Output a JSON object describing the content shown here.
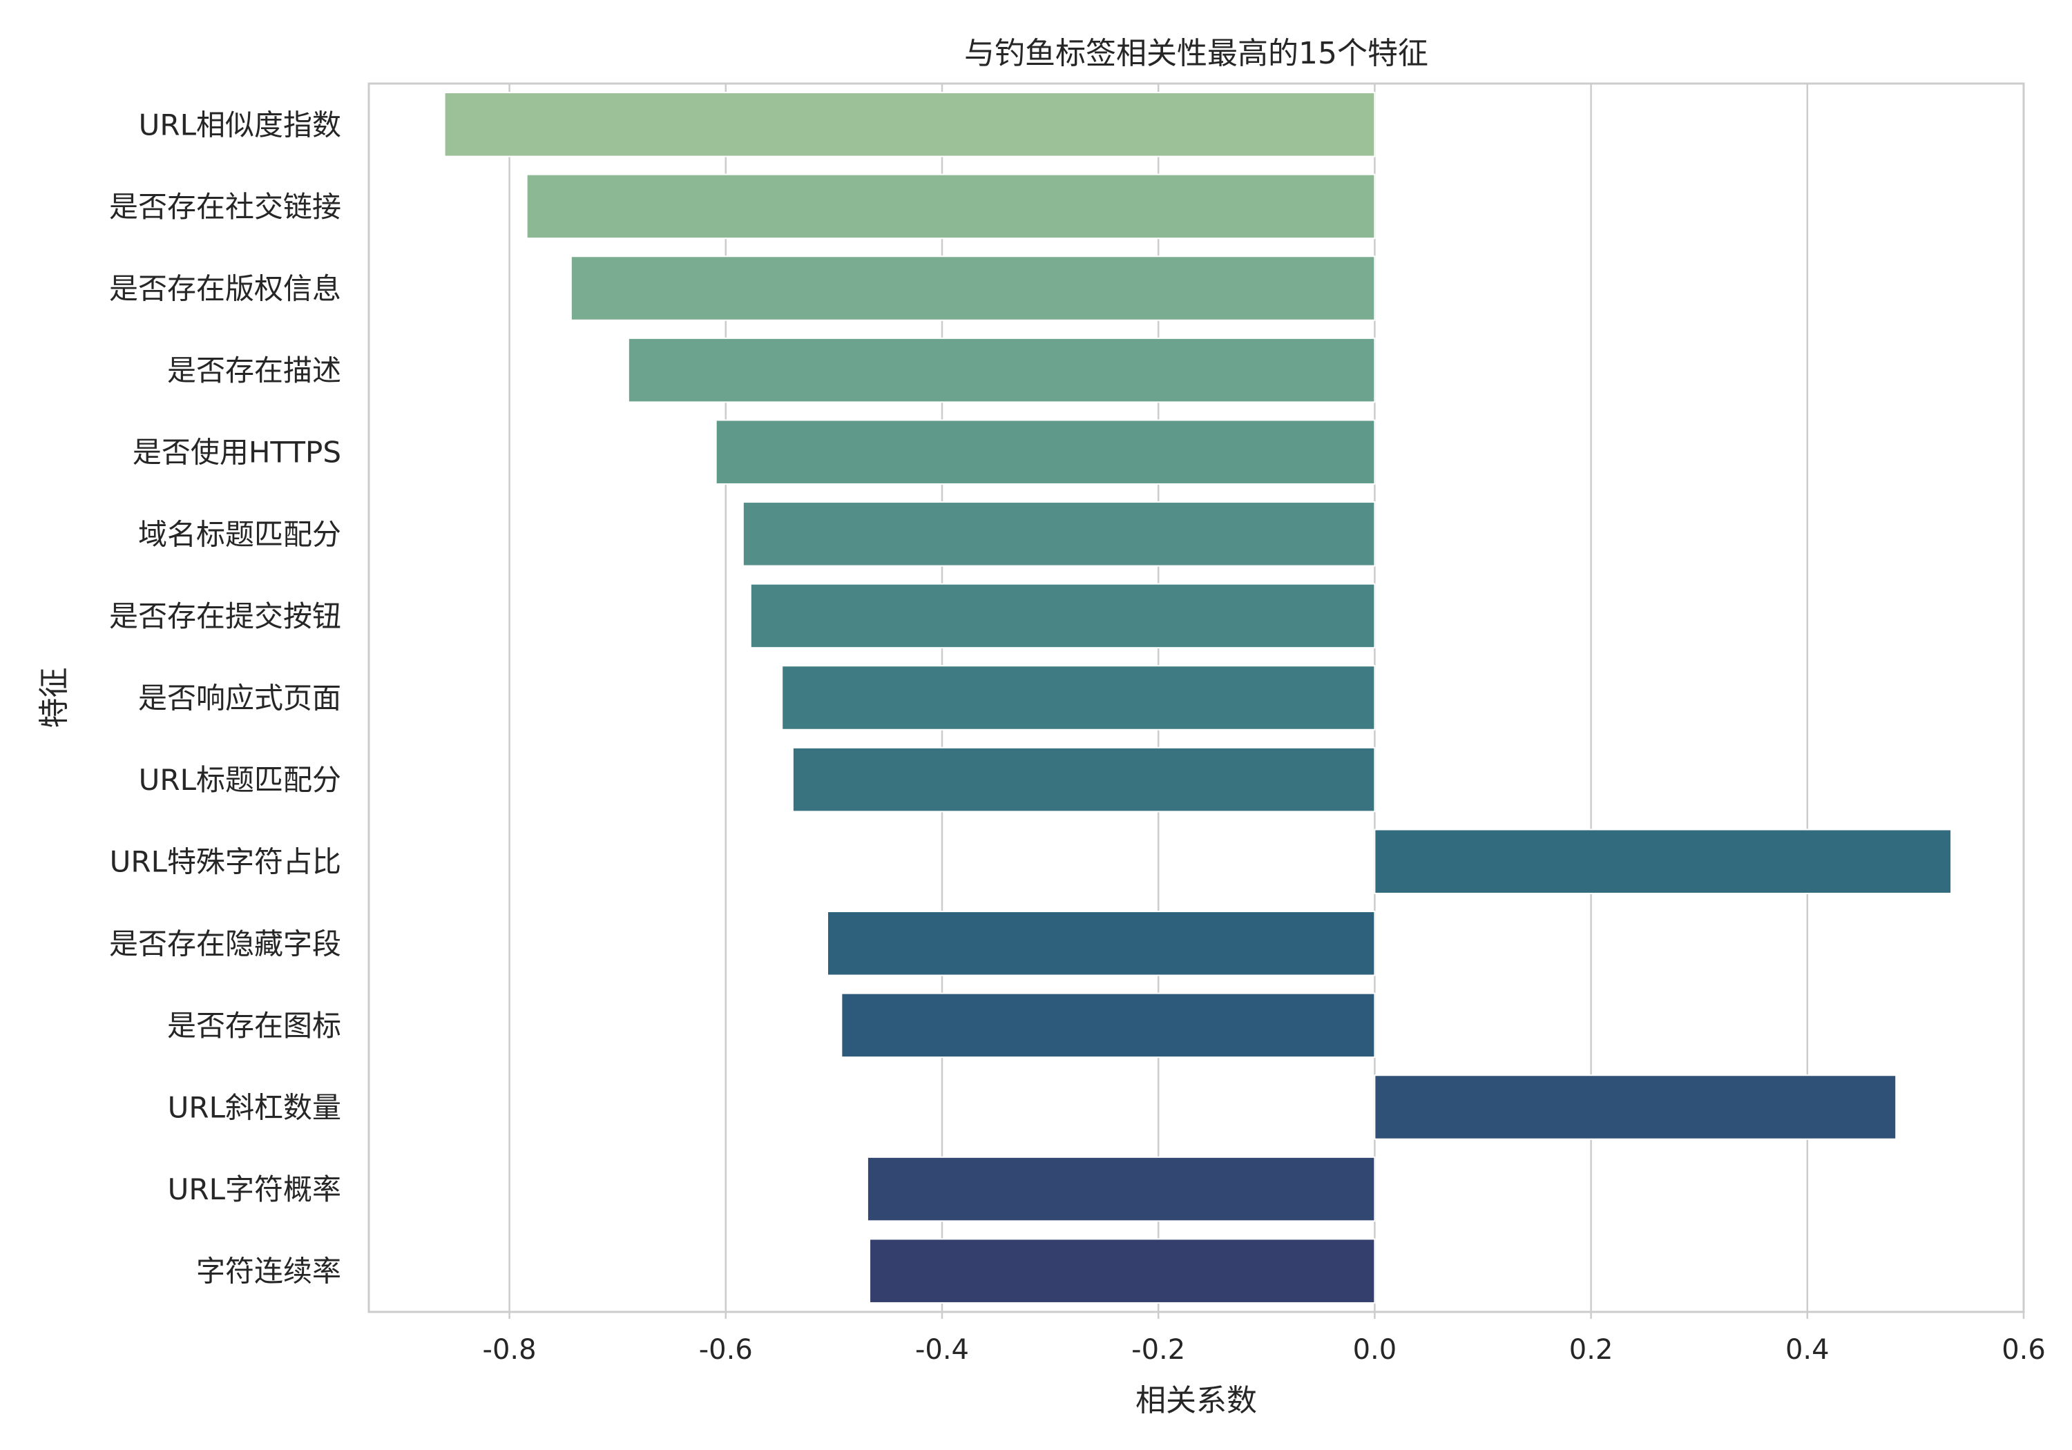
{
  "chart_data": {
    "type": "bar",
    "orientation": "horizontal",
    "title": "与钓鱼标签相关性最高的15个特征",
    "xlabel": "相关系数",
    "ylabel": "特征",
    "xlim": [
      -0.93,
      0.6
    ],
    "xticks": [
      -0.8,
      -0.6,
      -0.4,
      -0.2,
      0.0,
      0.2,
      0.4,
      0.6
    ],
    "xtick_labels": [
      "-0.8",
      "-0.6",
      "-0.4",
      "-0.2",
      "0.0",
      "0.2",
      "0.4",
      "0.6"
    ],
    "grid": "vertical",
    "categories": [
      "URL相似度指数",
      "是否存在社交链接",
      "是否存在版权信息",
      "是否存在描述",
      "是否使用HTTPS",
      "域名标题匹配分",
      "是否存在提交按钮",
      "是否响应式页面",
      "URL标题匹配分",
      "URL特殊字符占比",
      "是否存在隐藏字段",
      "是否存在图标",
      "URL斜杠数量",
      "URL字符概率",
      "字符连续率"
    ],
    "values": [
      -0.86,
      -0.784,
      -0.743,
      -0.69,
      -0.609,
      -0.584,
      -0.577,
      -0.548,
      -0.538,
      0.533,
      -0.506,
      -0.493,
      0.482,
      -0.469,
      -0.467
    ],
    "colors": [
      "#9cc098",
      "#8cb894",
      "#7aac92",
      "#6ba38e",
      "#5e998a",
      "#538f88",
      "#4a8586",
      "#3f7b82",
      "#39737f",
      "#336b7e",
      "#2d617c",
      "#2d5a7b",
      "#2f5178",
      "#324873",
      "#353f6d"
    ]
  }
}
